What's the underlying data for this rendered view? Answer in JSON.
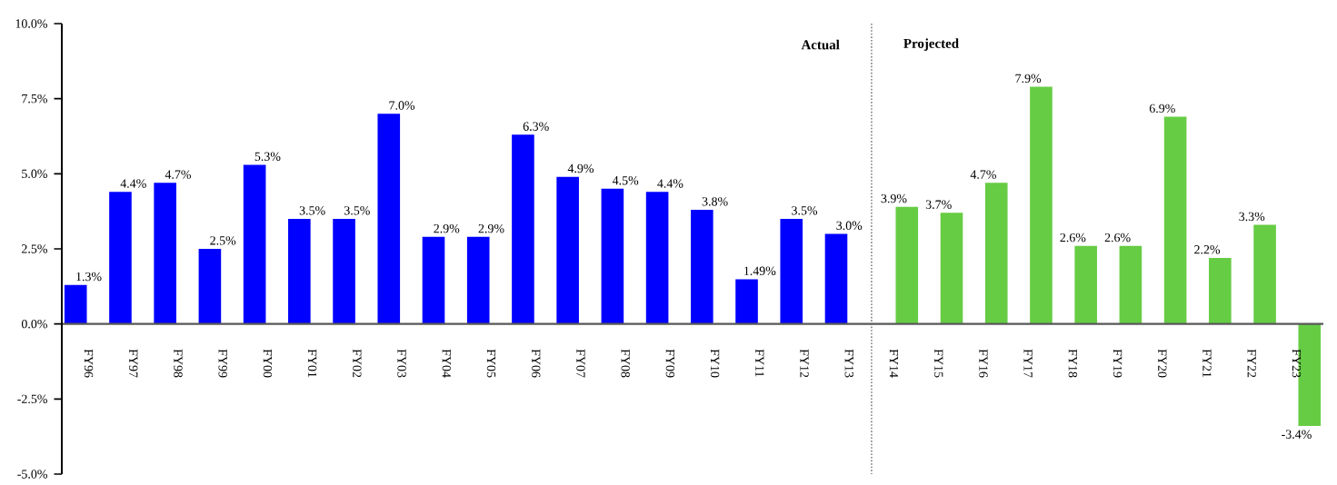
{
  "chart_data": {
    "type": "bar",
    "categories": [
      "FY96",
      "FY97",
      "FY98",
      "FY99",
      "FY00",
      "FY01",
      "FY02",
      "FY03",
      "FY04",
      "FY05",
      "FY06",
      "FY07",
      "FY08",
      "FY09",
      "FY10",
      "FY11",
      "FY12",
      "FY13",
      "FY14",
      "FY15",
      "FY16",
      "FY17",
      "FY18",
      "FY19",
      "FY20",
      "FY21",
      "FY22",
      "FY23"
    ],
    "series": [
      {
        "color": "#0000ff",
        "values": [
          1.3,
          4.4,
          4.7,
          2.5,
          5.3,
          3.5,
          3.5,
          7.0,
          2.9,
          2.9,
          6.3,
          4.9,
          4.5,
          4.4,
          3.8,
          1.49,
          3.5,
          3.0,
          null,
          null,
          null,
          null,
          null,
          null,
          null,
          null,
          null,
          null
        ],
        "value_labels": [
          "1.3%",
          "4.4%",
          "4.7%",
          "2.5%",
          "5.3%",
          "3.5%",
          "3.5%",
          "7.0%",
          "2.9%",
          "2.9%",
          "6.3%",
          "4.9%",
          "4.5%",
          "4.4%",
          "3.8%",
          "1.49%",
          "3.5%",
          "3.0%",
          null,
          null,
          null,
          null,
          null,
          null,
          null,
          null,
          null,
          null
        ]
      },
      {
        "color": "#66cc44",
        "values": [
          null,
          null,
          null,
          null,
          null,
          null,
          null,
          null,
          null,
          null,
          null,
          null,
          null,
          null,
          null,
          null,
          null,
          null,
          3.9,
          3.7,
          4.7,
          7.9,
          2.6,
          2.6,
          6.9,
          2.2,
          3.3,
          -3.4
        ],
        "value_labels": [
          null,
          null,
          null,
          null,
          null,
          null,
          null,
          null,
          null,
          null,
          null,
          null,
          null,
          null,
          null,
          null,
          null,
          null,
          "3.9%",
          "3.7%",
          "4.7%",
          "7.9%",
          "2.6%",
          "2.6%",
          "6.9%",
          "2.2%",
          "3.3%",
          "-3.4%"
        ]
      }
    ],
    "ylim": [
      -5,
      10
    ],
    "yticks": [
      {
        "value": -5,
        "label": "-5.0%"
      },
      {
        "value": -2.5,
        "label": "-2.5%"
      },
      {
        "value": 0,
        "label": "0.0%"
      },
      {
        "value": 2.5,
        "label": "2.5%"
      },
      {
        "value": 5,
        "label": "5.0%"
      },
      {
        "value": 7.5,
        "label": "7.5%"
      },
      {
        "value": 10,
        "label": "10.0%"
      }
    ],
    "annotations": [
      "Actual",
      "Projected"
    ]
  }
}
